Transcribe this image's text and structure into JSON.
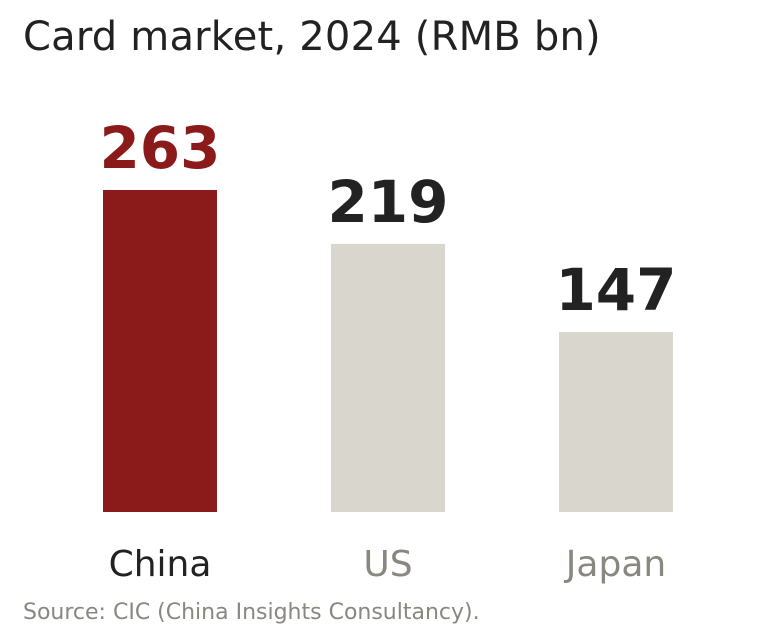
{
  "title": "Card market, 2024 (RMB bn)",
  "source": "Source: CIC (China Insights Consultancy).",
  "colors": {
    "highlight_bar": "#8b1a1a",
    "muted_bar": "#d9d6cd",
    "highlight_value": "#8b1a1a",
    "default_value": "#222222",
    "highlight_label": "#222222",
    "muted_label": "#8a8780"
  },
  "chart_data": {
    "type": "bar",
    "title": "Card market, 2024 (RMB bn)",
    "categories": [
      "China",
      "US",
      "Japan"
    ],
    "values": [
      263,
      219,
      147
    ],
    "highlight": [
      "China"
    ],
    "xlabel": "",
    "ylabel": "",
    "ylim": [
      0,
      263
    ],
    "grid": false,
    "axes_visible": false,
    "data_labels": [
      "263",
      "219",
      "147"
    ]
  }
}
